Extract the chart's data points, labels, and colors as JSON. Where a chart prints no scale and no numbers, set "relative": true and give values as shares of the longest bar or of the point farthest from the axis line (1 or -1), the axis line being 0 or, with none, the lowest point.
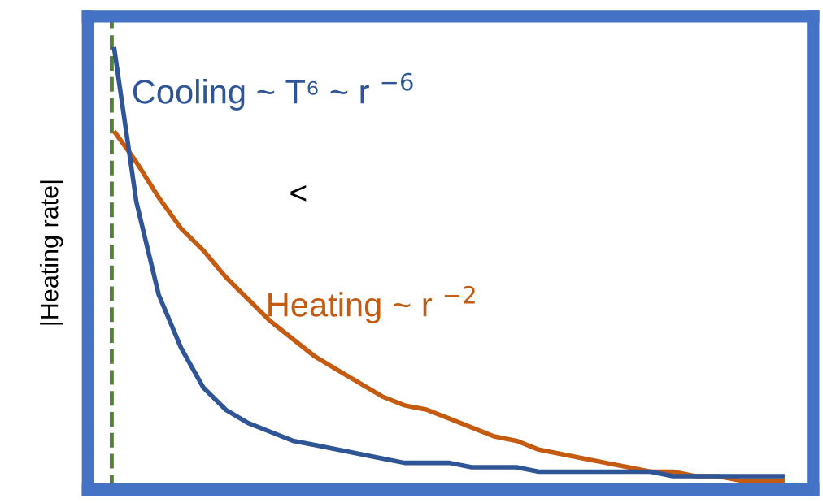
{
  "chart_data": {
    "type": "line",
    "relative": true,
    "ylabel": "|Heating rate|",
    "categories": [
      null,
      null,
      null,
      null,
      null,
      null,
      null,
      null,
      null,
      null,
      null,
      null,
      null,
      null,
      null,
      null,
      null,
      null,
      null,
      null,
      null,
      null,
      null,
      null,
      null,
      null,
      null,
      null,
      null,
      null,
      null
    ],
    "series": [
      {
        "name": "Cooling ~ T⁶ ~ r $^{−6}$",
        "color": "#2f5597",
        "values": [
          1.0,
          0.65,
          0.44,
          0.32,
          0.23,
          0.18,
          0.15,
          0.13,
          0.11,
          0.1,
          0.09,
          0.08,
          0.07,
          0.06,
          0.06,
          0.06,
          0.05,
          0.05,
          0.05,
          0.04,
          0.04,
          0.04,
          0.04,
          0.04,
          0.04,
          0.03,
          0.03,
          0.03,
          0.03,
          0.03,
          0.03
        ]
      },
      {
        "name": "Heating ~ r $^{−2}$",
        "color": "#c55a11",
        "values": [
          0.81,
          0.74,
          0.66,
          0.59,
          0.54,
          0.48,
          0.43,
          0.38,
          0.34,
          0.3,
          0.27,
          0.24,
          0.21,
          0.19,
          0.18,
          0.16,
          0.14,
          0.12,
          0.11,
          0.09,
          0.08,
          0.07,
          0.06,
          0.05,
          0.04,
          0.04,
          0.03,
          0.03,
          0.02,
          0.02,
          0.02
        ]
      }
    ],
    "annotations": [
      "<"
    ],
    "line_style": "solid"
  }
}
